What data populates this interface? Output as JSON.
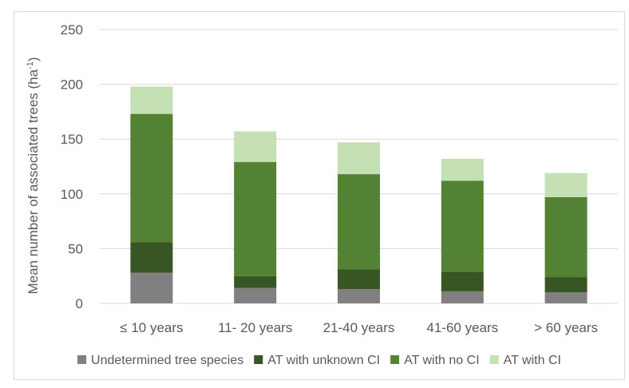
{
  "chart_data": {
    "type": "bar",
    "stacked": true,
    "title": "",
    "xlabel": "",
    "ylabel": "Mean number of associated trees (ha",
    "ylabel_superscript": "-1",
    "ylabel_suffix": ")",
    "ylim": [
      0,
      250
    ],
    "yticks": [
      0,
      50,
      100,
      150,
      200,
      250
    ],
    "grid": true,
    "legend_position": "bottom",
    "categories": [
      "≤ 10 years",
      "11- 20 years",
      "21-40 years",
      "41-60 years",
      "> 60 years"
    ],
    "series": [
      {
        "name": "Undetermined tree species",
        "color": "#808080",
        "values": [
          28,
          14,
          13,
          11,
          10
        ]
      },
      {
        "name": "AT with unknown CI",
        "color": "#375623",
        "values": [
          28,
          11,
          18,
          18,
          14
        ]
      },
      {
        "name": "AT with no CI",
        "color": "#548235",
        "values": [
          117,
          104,
          87,
          83,
          73
        ]
      },
      {
        "name": "AT with CI",
        "color": "#c5e0b4",
        "values": [
          25,
          28,
          29,
          20,
          22
        ]
      }
    ]
  }
}
